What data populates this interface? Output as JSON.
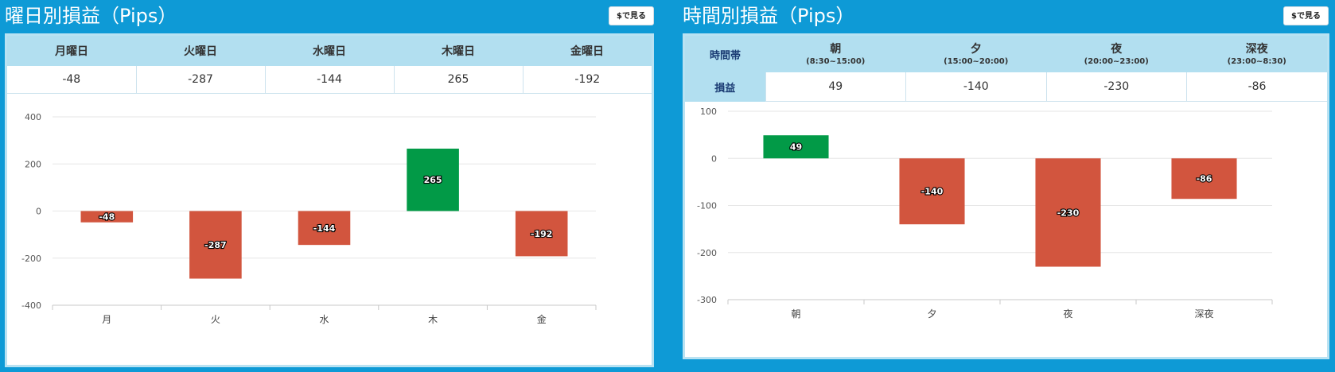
{
  "day_panel": {
    "title": "曜日別損益（Pips）",
    "button_label": "$で見る",
    "headers": [
      "月曜日",
      "火曜日",
      "水曜日",
      "木曜日",
      "金曜日"
    ],
    "values": [
      "-48",
      "-287",
      "-144",
      "265",
      "-192"
    ]
  },
  "time_panel": {
    "title": "時間別損益（Pips）",
    "button_label": "$で見る",
    "row_header_time": "時間帯",
    "row_header_pl": "損益",
    "headers": [
      {
        "name": "朝",
        "range": "(8:30~15:00)"
      },
      {
        "name": "夕",
        "range": "(15:00~20:00)"
      },
      {
        "name": "夜",
        "range": "(20:00~23:00)"
      },
      {
        "name": "深夜",
        "range": "(23:00~8:30)"
      }
    ],
    "values": [
      "49",
      "-140",
      "-230",
      "-86"
    ]
  },
  "colors": {
    "positive": "#029a47",
    "negative": "#d2553e",
    "background": "#0e9ad6",
    "header": "#b2dff0"
  },
  "chart_data": [
    {
      "type": "bar",
      "categories": [
        "月",
        "火",
        "水",
        "木",
        "金"
      ],
      "values": [
        -48,
        -287,
        -144,
        265,
        -192
      ],
      "ylim": [
        -400,
        400
      ],
      "yticks": [
        400,
        200,
        0,
        -200,
        -400
      ],
      "data_labels": true,
      "grid": true
    },
    {
      "type": "bar",
      "categories": [
        "朝",
        "夕",
        "夜",
        "深夜"
      ],
      "values": [
        49,
        -140,
        -230,
        -86
      ],
      "ylim": [
        -300,
        100
      ],
      "yticks": [
        100,
        0,
        -100,
        -200,
        -300
      ],
      "data_labels": true,
      "grid": true
    }
  ]
}
